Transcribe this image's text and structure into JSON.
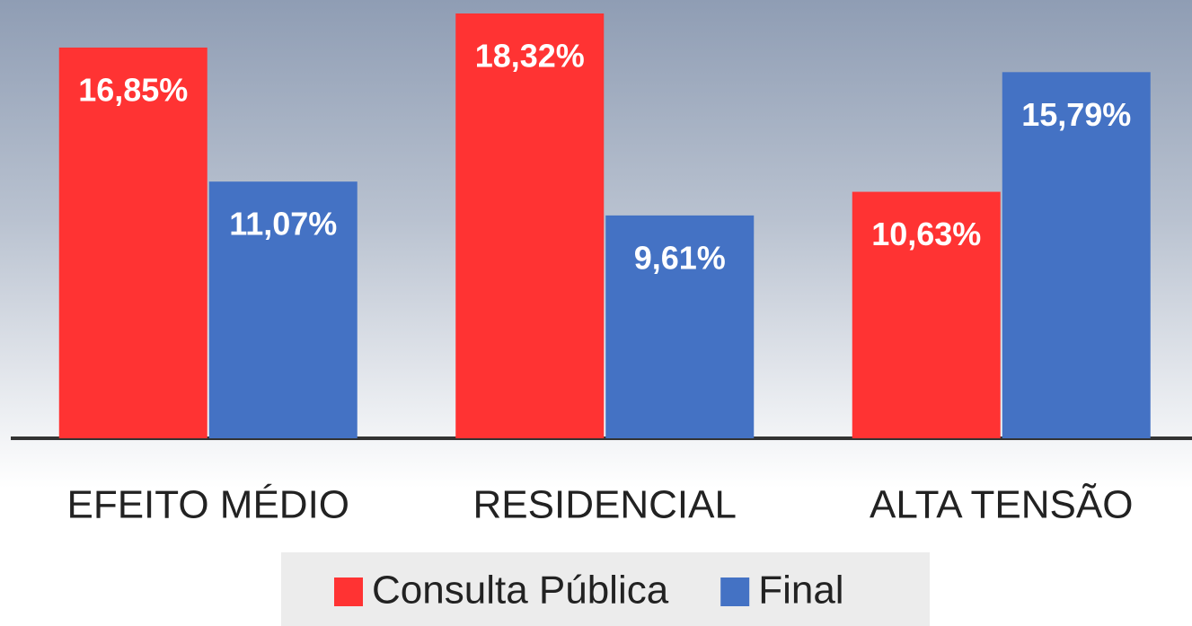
{
  "chart_data": {
    "type": "bar",
    "categories": [
      "EFEITO MÉDIO",
      "RESIDENCIAL",
      "ALTA TENSÃO"
    ],
    "series": [
      {
        "name": "Consulta Pública",
        "color": "#ff3333",
        "values": [
          16.85,
          18.32,
          10.63
        ],
        "value_labels": [
          "16,85%",
          "18,32%",
          "10,63%"
        ]
      },
      {
        "name": "Final",
        "color": "#4472c4",
        "values": [
          11.07,
          9.61,
          15.79
        ],
        "value_labels": [
          "11,07%",
          "9,61%",
          "15,79%"
        ]
      }
    ]
  }
}
